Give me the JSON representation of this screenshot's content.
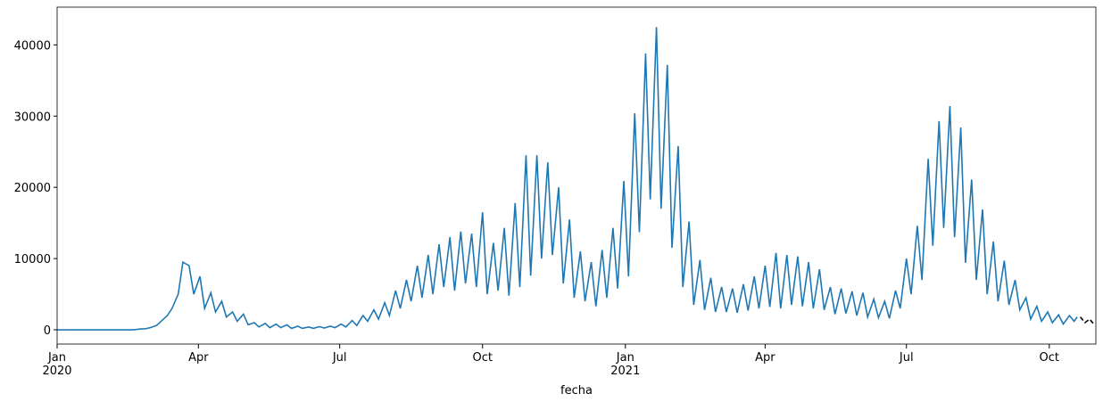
{
  "chart_data": {
    "type": "line",
    "xlabel": "fecha",
    "xlim": [
      0,
      669
    ],
    "ylim": [
      -2000,
      45300
    ],
    "xticks": [
      {
        "value": 0,
        "label": "Jan\n2020"
      },
      {
        "value": 91,
        "label": "Apr"
      },
      {
        "value": 182,
        "label": "Jul"
      },
      {
        "value": 274,
        "label": "Oct"
      },
      {
        "value": 366,
        "label": "Jan\n2021"
      },
      {
        "value": 456,
        "label": "Apr"
      },
      {
        "value": 547,
        "label": "Jul"
      },
      {
        "value": 639,
        "label": "Oct"
      }
    ],
    "yticks": [
      0,
      10000,
      20000,
      30000,
      40000
    ],
    "grid": false,
    "series": [
      {
        "color": "#1f77b4",
        "linestyle": "solid",
        "x": [
          0,
          48,
          50,
          53,
          57,
          60,
          64,
          67,
          71,
          74,
          78,
          81,
          85,
          88,
          92,
          95,
          99,
          102,
          106,
          109,
          113,
          116,
          120,
          123,
          127,
          130,
          134,
          137,
          141,
          144,
          148,
          151,
          155,
          158,
          162,
          165,
          169,
          172,
          176,
          179,
          183,
          186,
          190,
          193,
          197,
          200,
          204,
          207,
          211,
          214,
          218,
          221,
          225,
          228,
          232,
          235,
          239,
          242,
          246,
          249,
          253,
          256,
          260,
          263,
          267,
          270,
          274,
          277,
          281,
          284,
          288,
          291,
          295,
          298,
          302,
          305,
          309,
          312,
          316,
          319,
          323,
          326,
          330,
          333,
          337,
          340,
          344,
          347,
          351,
          354,
          358,
          361,
          365,
          368,
          372,
          375,
          379,
          382,
          386,
          389,
          393,
          396,
          400,
          403,
          407,
          410,
          414,
          417,
          421,
          424,
          428,
          431,
          435,
          438,
          442,
          445,
          449,
          452,
          456,
          459,
          463,
          466,
          470,
          473,
          477,
          480,
          484,
          487,
          491,
          494,
          498,
          501,
          505,
          508,
          512,
          515,
          519,
          522,
          526,
          529,
          533,
          536,
          540,
          543,
          547,
          550,
          554,
          557,
          561,
          564,
          568,
          571,
          575,
          578,
          582,
          585,
          589,
          592,
          596,
          599,
          603,
          606,
          610,
          613,
          617,
          620,
          624,
          627,
          631,
          634,
          638,
          641,
          645,
          648,
          652,
          655,
          657
        ],
        "values": [
          0,
          0,
          20,
          100,
          150,
          300,
          600,
          1200,
          2000,
          3000,
          5000,
          9500,
          9000,
          5000,
          7500,
          3000,
          5200,
          2500,
          4000,
          1800,
          2500,
          1200,
          2200,
          700,
          1000,
          400,
          900,
          300,
          800,
          300,
          700,
          200,
          500,
          200,
          400,
          200,
          450,
          250,
          500,
          300,
          800,
          400,
          1300,
          600,
          2000,
          1200,
          2800,
          1500,
          3800,
          2000,
          5500,
          3000,
          7000,
          4000,
          9000,
          4500,
          10500,
          5000,
          12000,
          6000,
          13000,
          5500,
          13800,
          6500,
          13500,
          6000,
          16500,
          5000,
          12200,
          5500,
          14300,
          4800,
          17800,
          6000,
          24500,
          7600,
          24500,
          10000,
          23500,
          10500,
          20000,
          6500,
          15500,
          4500,
          11000,
          4000,
          9500,
          3300,
          11200,
          4500,
          14300,
          5800,
          20900,
          7500,
          30400,
          13700,
          38800,
          18300,
          42500,
          17000,
          37200,
          11500,
          25800,
          6000,
          15200,
          3500,
          9800,
          2800,
          7300,
          2500,
          6000,
          2500,
          5800,
          2400,
          6400,
          2700,
          7500,
          3000,
          9000,
          3200,
          10800,
          3000,
          10500,
          3500,
          10300,
          3300,
          9500,
          3000,
          8500,
          2800,
          6000,
          2200,
          5800,
          2300,
          5400,
          2000,
          5200,
          1800,
          4300,
          1700,
          4000,
          1600,
          5500,
          3000,
          10000,
          5000,
          14600,
          7000,
          24000,
          11800,
          29300,
          14300,
          31400,
          13000,
          28400,
          9400,
          21100,
          7000,
          16900,
          5000,
          12400,
          4000,
          9700,
          3500,
          7000,
          2800,
          4500,
          1500,
          3300,
          1200,
          2500,
          1000,
          2100,
          800,
          2000,
          1200,
          1800
        ]
      },
      {
        "color": "#000000",
        "linestyle": "dashed",
        "x": [
          659,
          662,
          665,
          668
        ],
        "values": [
          1800,
          1000,
          1500,
          700
        ]
      }
    ]
  }
}
